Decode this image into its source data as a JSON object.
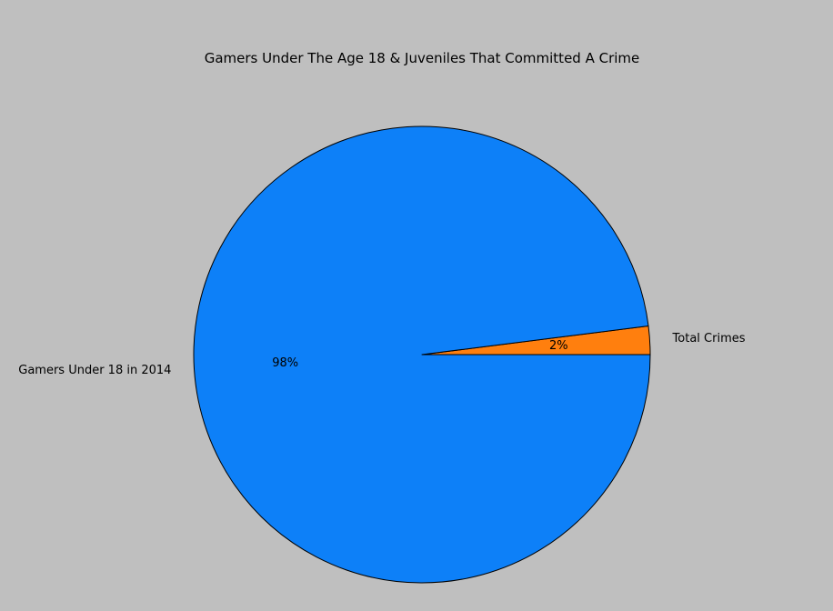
{
  "chart_data": {
    "type": "pie",
    "title": "Gamers Under The Age 18 & Juveniles That Committed A Crime",
    "slices": [
      {
        "label": "Total Crimes",
        "percent": 2,
        "pct_label": "2%",
        "color": "#ff7f0e"
      },
      {
        "label": "Gamers Under 18 in 2014",
        "percent": 98,
        "pct_label": "98%",
        "color": "#0d80f8"
      }
    ],
    "start_angle_deg": 0,
    "direction": "counterclockwise",
    "legend": "none"
  }
}
